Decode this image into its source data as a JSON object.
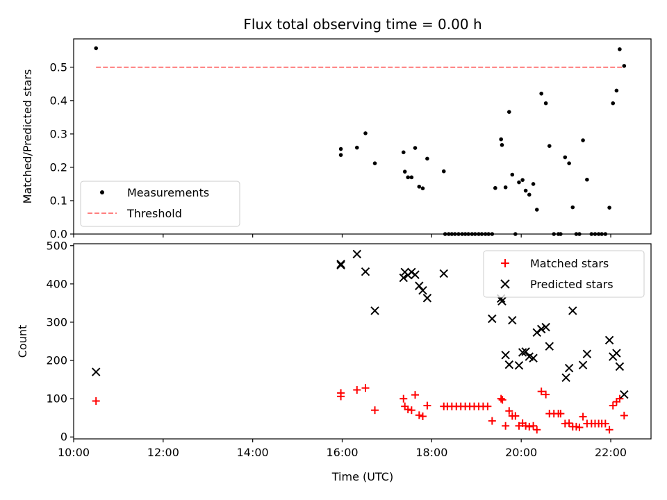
{
  "chart_data": [
    {
      "type": "scatter",
      "title": "Flux total observing time = 0.00 h",
      "xlabel": "",
      "ylabel": "Matched/Predicted stars",
      "ylim": [
        0,
        0.585
      ],
      "xlim": [
        10.0,
        22.9
      ],
      "yticks": [
        "0.0",
        "0.1",
        "0.2",
        "0.3",
        "0.4",
        "0.5"
      ],
      "grid": false,
      "legend_position": "lower-left",
      "series": [
        {
          "name": "Measurements",
          "marker": "dot",
          "color": "#000000",
          "points": [
            [
              10.5,
              0.557
            ],
            [
              15.97,
              0.255
            ],
            [
              15.97,
              0.237
            ],
            [
              16.33,
              0.259
            ],
            [
              16.52,
              0.302
            ],
            [
              16.73,
              0.212
            ],
            [
              17.37,
              0.245
            ],
            [
              17.4,
              0.187
            ],
            [
              17.47,
              0.17
            ],
            [
              17.55,
              0.17
            ],
            [
              17.63,
              0.258
            ],
            [
              17.72,
              0.142
            ],
            [
              17.8,
              0.137
            ],
            [
              17.9,
              0.226
            ],
            [
              18.27,
              0.188
            ],
            [
              18.3,
              0.0
            ],
            [
              18.38,
              0.0
            ],
            [
              18.45,
              0.0
            ],
            [
              18.52,
              0.0
            ],
            [
              18.6,
              0.0
            ],
            [
              18.68,
              0.0
            ],
            [
              18.75,
              0.0
            ],
            [
              18.82,
              0.0
            ],
            [
              18.9,
              0.0
            ],
            [
              18.97,
              0.0
            ],
            [
              19.05,
              0.0
            ],
            [
              19.12,
              0.0
            ],
            [
              19.2,
              0.0
            ],
            [
              19.27,
              0.0
            ],
            [
              19.35,
              0.0
            ],
            [
              19.42,
              0.138
            ],
            [
              19.55,
              0.284
            ],
            [
              19.57,
              0.267
            ],
            [
              19.65,
              0.14
            ],
            [
              19.73,
              0.366
            ],
            [
              19.8,
              0.178
            ],
            [
              19.87,
              0.0
            ],
            [
              19.95,
              0.155
            ],
            [
              20.03,
              0.162
            ],
            [
              20.1,
              0.13
            ],
            [
              20.18,
              0.118
            ],
            [
              20.27,
              0.15
            ],
            [
              20.35,
              0.073
            ],
            [
              20.45,
              0.421
            ],
            [
              20.55,
              0.392
            ],
            [
              20.63,
              0.264
            ],
            [
              20.73,
              0.0
            ],
            [
              20.83,
              0.0
            ],
            [
              20.88,
              0.0
            ],
            [
              20.98,
              0.23
            ],
            [
              21.07,
              0.212
            ],
            [
              21.15,
              0.08
            ],
            [
              21.23,
              0.0
            ],
            [
              21.3,
              0.0
            ],
            [
              21.38,
              0.281
            ],
            [
              21.47,
              0.163
            ],
            [
              21.57,
              0.0
            ],
            [
              21.65,
              0.0
            ],
            [
              21.73,
              0.0
            ],
            [
              21.8,
              0.0
            ],
            [
              21.88,
              0.0
            ],
            [
              21.97,
              0.079
            ],
            [
              22.05,
              0.392
            ],
            [
              22.13,
              0.43
            ],
            [
              22.2,
              0.554
            ],
            [
              22.3,
              0.504
            ]
          ]
        },
        {
          "name": "Threshold",
          "marker": "dashed-line",
          "color": "#ff7f7f",
          "points": [
            [
              10.5,
              0.5
            ],
            [
              22.3,
              0.5
            ]
          ]
        }
      ]
    },
    {
      "type": "scatter",
      "title": "",
      "xlabel": "Time (UTC)",
      "ylabel": "Count",
      "ylim": [
        -5,
        505
      ],
      "xlim": [
        10.0,
        22.9
      ],
      "yticks": [
        "0",
        "100",
        "200",
        "300",
        "400",
        "500"
      ],
      "xticks": [
        "10:00",
        "12:00",
        "14:00",
        "16:00",
        "18:00",
        "20:00",
        "22:00"
      ],
      "grid": false,
      "legend_position": "top-right",
      "series": [
        {
          "name": "Matched stars",
          "marker": "plus",
          "color": "#ff0000",
          "points": [
            [
              10.5,
              94
            ],
            [
              15.97,
              115
            ],
            [
              15.97,
              106
            ],
            [
              16.33,
              123
            ],
            [
              16.52,
              128
            ],
            [
              16.73,
              70
            ],
            [
              17.37,
              100
            ],
            [
              17.4,
              80
            ],
            [
              17.47,
              72
            ],
            [
              17.55,
              70
            ],
            [
              17.63,
              110
            ],
            [
              17.72,
              57
            ],
            [
              17.8,
              54
            ],
            [
              17.9,
              82
            ],
            [
              18.27,
              80
            ],
            [
              18.35,
              80
            ],
            [
              18.45,
              80
            ],
            [
              18.55,
              80
            ],
            [
              18.65,
              80
            ],
            [
              18.75,
              80
            ],
            [
              18.85,
              80
            ],
            [
              18.95,
              80
            ],
            [
              19.05,
              80
            ],
            [
              19.15,
              80
            ],
            [
              19.25,
              80
            ],
            [
              19.35,
              42
            ],
            [
              19.55,
              100
            ],
            [
              19.58,
              97
            ],
            [
              19.65,
              29
            ],
            [
              19.73,
              68
            ],
            [
              19.8,
              55
            ],
            [
              19.87,
              55
            ],
            [
              19.95,
              29
            ],
            [
              20.03,
              36
            ],
            [
              20.1,
              29
            ],
            [
              20.18,
              27
            ],
            [
              20.27,
              29
            ],
            [
              20.35,
              19
            ],
            [
              20.45,
              119
            ],
            [
              20.55,
              111
            ],
            [
              20.63,
              61
            ],
            [
              20.73,
              61
            ],
            [
              20.83,
              61
            ],
            [
              20.88,
              61
            ],
            [
              20.98,
              35
            ],
            [
              21.07,
              36
            ],
            [
              21.15,
              27
            ],
            [
              21.23,
              27
            ],
            [
              21.3,
              25
            ],
            [
              21.38,
              53
            ],
            [
              21.47,
              35
            ],
            [
              21.57,
              35
            ],
            [
              21.65,
              35
            ],
            [
              21.73,
              35
            ],
            [
              21.8,
              35
            ],
            [
              21.88,
              35
            ],
            [
              21.97,
              19
            ],
            [
              22.05,
              82
            ],
            [
              22.13,
              92
            ],
            [
              22.2,
              100
            ],
            [
              22.3,
              56
            ]
          ]
        },
        {
          "name": "Predicted stars",
          "marker": "x",
          "color": "#000000",
          "points": [
            [
              10.5,
              170
            ],
            [
              15.97,
              452
            ],
            [
              15.97,
              449
            ],
            [
              16.33,
              478
            ],
            [
              16.52,
              432
            ],
            [
              16.73,
              330
            ],
            [
              17.37,
              416
            ],
            [
              17.4,
              431
            ],
            [
              17.47,
              423
            ],
            [
              17.55,
              431
            ],
            [
              17.63,
              424
            ],
            [
              17.72,
              395
            ],
            [
              17.8,
              383
            ],
            [
              17.9,
              363
            ],
            [
              18.27,
              427
            ],
            [
              19.35,
              309
            ],
            [
              19.55,
              362
            ],
            [
              19.57,
              355
            ],
            [
              19.65,
              214
            ],
            [
              19.73,
              189
            ],
            [
              19.8,
              305
            ],
            [
              19.95,
              187
            ],
            [
              20.03,
              221
            ],
            [
              20.1,
              223
            ],
            [
              20.18,
              210
            ],
            [
              20.27,
              206
            ],
            [
              20.35,
              273
            ],
            [
              20.45,
              282
            ],
            [
              20.55,
              287
            ],
            [
              20.63,
              237
            ],
            [
              21.0,
              155
            ],
            [
              21.07,
              180
            ],
            [
              21.15,
              330
            ],
            [
              21.38,
              188
            ],
            [
              21.47,
              217
            ],
            [
              21.97,
              253
            ],
            [
              22.05,
              210
            ],
            [
              22.13,
              219
            ],
            [
              22.2,
              184
            ],
            [
              22.3,
              111
            ]
          ]
        }
      ]
    }
  ]
}
